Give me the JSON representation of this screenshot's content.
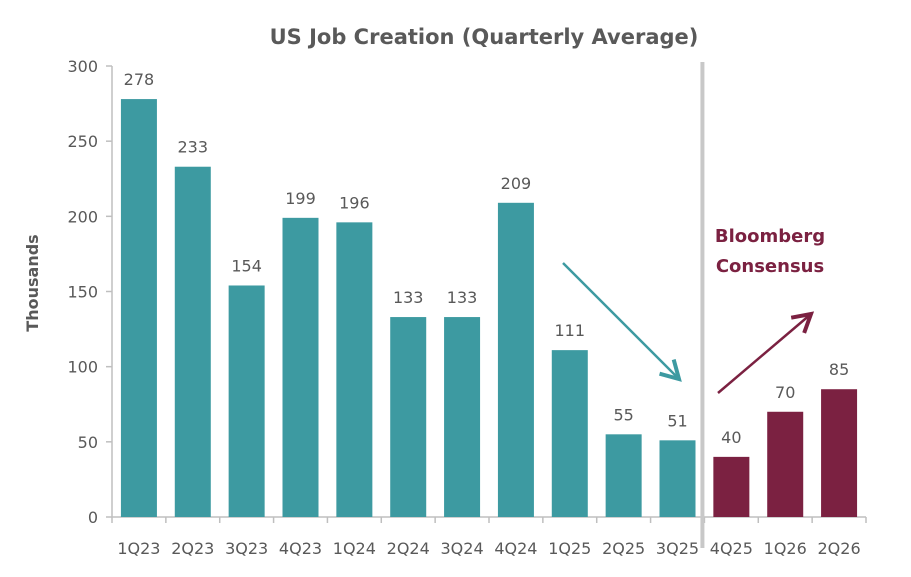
{
  "chart_data": {
    "type": "bar",
    "title": "US Job Creation (Quarterly Average)",
    "xlabel": "",
    "ylabel": "Thousands",
    "ylim": [
      0,
      300
    ],
    "yticks": [
      0,
      50,
      100,
      150,
      200,
      250,
      300
    ],
    "grid": false,
    "categories": [
      "1Q23",
      "2Q23",
      "3Q23",
      "4Q23",
      "1Q24",
      "2Q24",
      "3Q24",
      "4Q24",
      "1Q25",
      "2Q25",
      "3Q25",
      "4Q25",
      "1Q26",
      "2Q26"
    ],
    "values": [
      278,
      233,
      154,
      199,
      196,
      133,
      133,
      209,
      111,
      55,
      51,
      40,
      70,
      85
    ],
    "forecast_start_index": 11,
    "annotation": "Bloomberg Consensus",
    "annotation_lines": [
      "Bloomberg",
      "Consensus"
    ],
    "colors": {
      "actual": "#3d9aa1",
      "forecast": "#7b2141",
      "divider": "#c8c8c8",
      "text": "#595959"
    }
  }
}
